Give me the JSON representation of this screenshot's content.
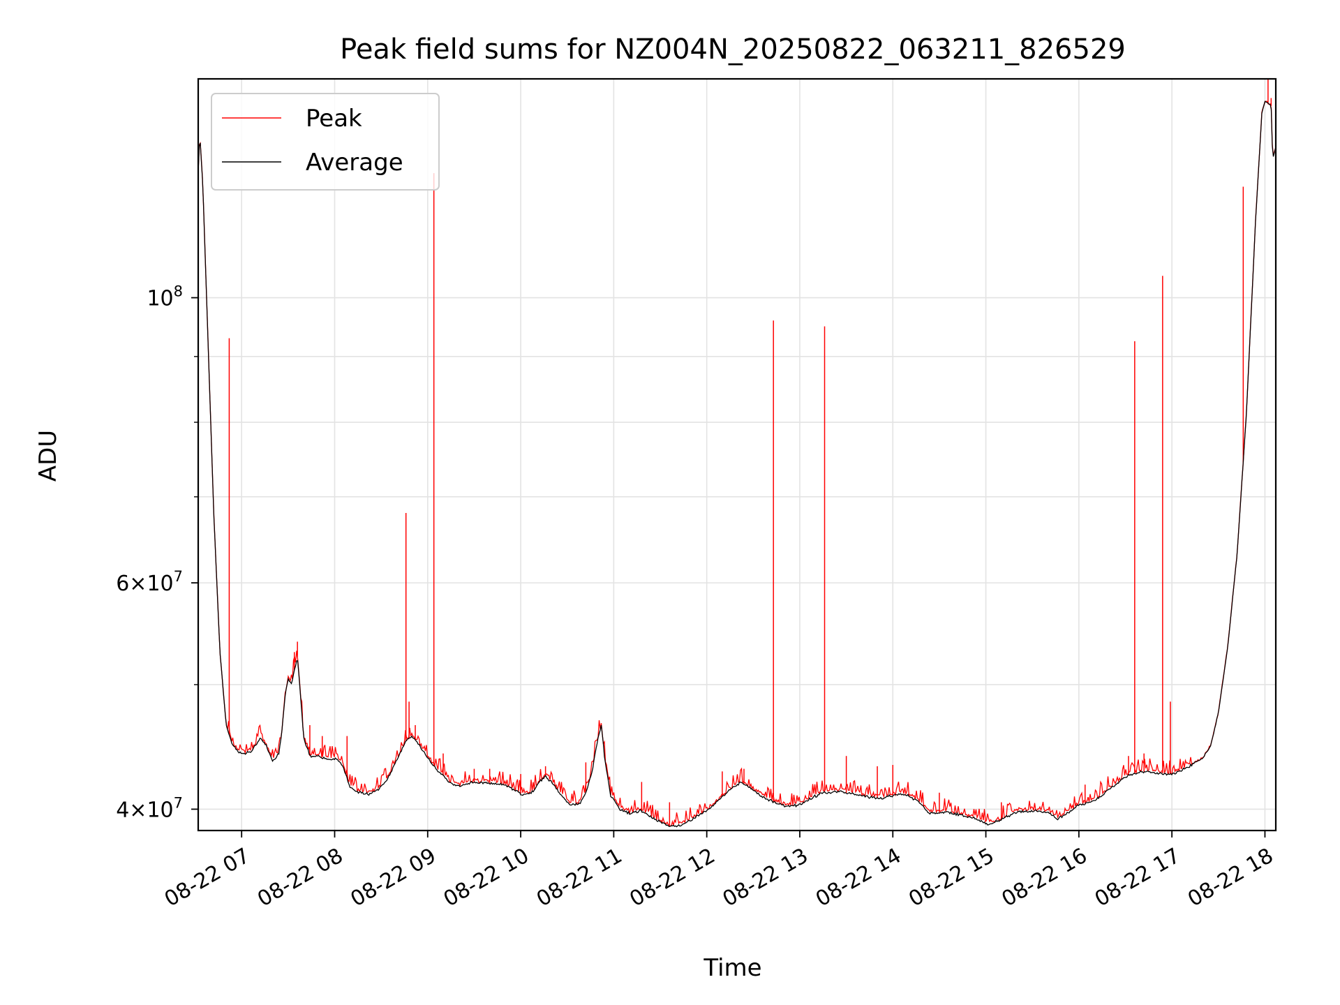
{
  "chart_data": {
    "type": "line",
    "title": "Peak field sums for NZ004N_20250822_063211_826529",
    "xlabel": "Time",
    "ylabel": "ADU",
    "y_scale": "log",
    "ylim": [
      38500000,
      148000000
    ],
    "xlim": [
      "2025-08-22 06:32",
      "2025-08-22 18:07"
    ],
    "x_ticks": [
      {
        "at": "2025-08-22 07:00",
        "label": "08-22 07"
      },
      {
        "at": "2025-08-22 08:00",
        "label": "08-22 08"
      },
      {
        "at": "2025-08-22 09:00",
        "label": "08-22 09"
      },
      {
        "at": "2025-08-22 10:00",
        "label": "08-22 10"
      },
      {
        "at": "2025-08-22 11:00",
        "label": "08-22 11"
      },
      {
        "at": "2025-08-22 12:00",
        "label": "08-22 12"
      },
      {
        "at": "2025-08-22 13:00",
        "label": "08-22 13"
      },
      {
        "at": "2025-08-22 14:00",
        "label": "08-22 14"
      },
      {
        "at": "2025-08-22 15:00",
        "label": "08-22 15"
      },
      {
        "at": "2025-08-22 16:00",
        "label": "08-22 16"
      },
      {
        "at": "2025-08-22 17:00",
        "label": "08-22 17"
      },
      {
        "at": "2025-08-22 18:00",
        "label": "08-22 18"
      }
    ],
    "y_ticks": [
      {
        "value": 40000000,
        "base": "4",
        "exp": "7"
      },
      {
        "value": 60000000,
        "base": "6",
        "exp": "7"
      },
      {
        "value": 100000000,
        "base": "",
        "exp": "8"
      }
    ],
    "y_minor_ticks": [
      50000000,
      70000000,
      80000000,
      90000000
    ],
    "grid": true,
    "legend": {
      "position": "top-left",
      "entries": [
        {
          "label": "Peak",
          "color": "#ff0000"
        },
        {
          "label": "Average",
          "color": "#000000"
        }
      ]
    },
    "series": [
      {
        "name": "Average",
        "color": "#000000",
        "points": [
          [
            "2025-08-22 06:32",
            125000000
          ],
          [
            "2025-08-22 06:33",
            134000000
          ],
          [
            "2025-08-22 06:35",
            122000000
          ],
          [
            "2025-08-22 06:38",
            95000000
          ],
          [
            "2025-08-22 06:42",
            68000000
          ],
          [
            "2025-08-22 06:46",
            53000000
          ],
          [
            "2025-08-22 06:50",
            46500000
          ],
          [
            "2025-08-22 06:54",
            45000000
          ],
          [
            "2025-08-22 06:58",
            44300000
          ],
          [
            "2025-08-22 07:02",
            44200000
          ],
          [
            "2025-08-22 07:06",
            44400000
          ],
          [
            "2025-08-22 07:10",
            45000000
          ],
          [
            "2025-08-22 07:12",
            45500000
          ],
          [
            "2025-08-22 07:16",
            44800000
          ],
          [
            "2025-08-22 07:20",
            43600000
          ],
          [
            "2025-08-22 07:24",
            44200000
          ],
          [
            "2025-08-22 07:26",
            46000000
          ],
          [
            "2025-08-22 07:28",
            49000000
          ],
          [
            "2025-08-22 07:30",
            50500000
          ],
          [
            "2025-08-22 07:32",
            50000000
          ],
          [
            "2025-08-22 07:34",
            51300000
          ],
          [
            "2025-08-22 07:36",
            52500000
          ],
          [
            "2025-08-22 07:38",
            49000000
          ],
          [
            "2025-08-22 07:40",
            45500000
          ],
          [
            "2025-08-22 07:44",
            44000000
          ],
          [
            "2025-08-22 07:50",
            44000000
          ],
          [
            "2025-08-22 07:56",
            43700000
          ],
          [
            "2025-08-22 08:02",
            43800000
          ],
          [
            "2025-08-22 08:06",
            43000000
          ],
          [
            "2025-08-22 08:10",
            41600000
          ],
          [
            "2025-08-22 08:16",
            41200000
          ],
          [
            "2025-08-22 08:22",
            41100000
          ],
          [
            "2025-08-22 08:28",
            41400000
          ],
          [
            "2025-08-22 08:34",
            42200000
          ],
          [
            "2025-08-22 08:40",
            43700000
          ],
          [
            "2025-08-22 08:46",
            45200000
          ],
          [
            "2025-08-22 08:50",
            45600000
          ],
          [
            "2025-08-22 08:56",
            44600000
          ],
          [
            "2025-08-22 09:02",
            43500000
          ],
          [
            "2025-08-22 09:08",
            42700000
          ],
          [
            "2025-08-22 09:14",
            42000000
          ],
          [
            "2025-08-22 09:20",
            41700000
          ],
          [
            "2025-08-22 09:30",
            42000000
          ],
          [
            "2025-08-22 09:40",
            41900000
          ],
          [
            "2025-08-22 09:50",
            41800000
          ],
          [
            "2025-08-22 09:56",
            41400000
          ],
          [
            "2025-08-22 10:02",
            41000000
          ],
          [
            "2025-08-22 10:08",
            41300000
          ],
          [
            "2025-08-22 10:12",
            42000000
          ],
          [
            "2025-08-22 10:16",
            42400000
          ],
          [
            "2025-08-22 10:20",
            42000000
          ],
          [
            "2025-08-22 10:26",
            41000000
          ],
          [
            "2025-08-22 10:32",
            40300000
          ],
          [
            "2025-08-22 10:38",
            40400000
          ],
          [
            "2025-08-22 10:42",
            41200000
          ],
          [
            "2025-08-22 10:46",
            42800000
          ],
          [
            "2025-08-22 10:50",
            45500000
          ],
          [
            "2025-08-22 10:52",
            46500000
          ],
          [
            "2025-08-22 10:54",
            44000000
          ],
          [
            "2025-08-22 10:58",
            41000000
          ],
          [
            "2025-08-22 11:04",
            40000000
          ],
          [
            "2025-08-22 11:10",
            39700000
          ],
          [
            "2025-08-22 11:18",
            39900000
          ],
          [
            "2025-08-22 11:26",
            39300000
          ],
          [
            "2025-08-22 11:36",
            38800000
          ],
          [
            "2025-08-22 11:44",
            38900000
          ],
          [
            "2025-08-22 11:52",
            39400000
          ],
          [
            "2025-08-22 12:00",
            39900000
          ],
          [
            "2025-08-22 12:08",
            40700000
          ],
          [
            "2025-08-22 12:16",
            41500000
          ],
          [
            "2025-08-22 12:22",
            42000000
          ],
          [
            "2025-08-22 12:28",
            41600000
          ],
          [
            "2025-08-22 12:36",
            40900000
          ],
          [
            "2025-08-22 12:44",
            40500000
          ],
          [
            "2025-08-22 12:52",
            40200000
          ],
          [
            "2025-08-22 13:00",
            40300000
          ],
          [
            "2025-08-22 13:06",
            40700000
          ],
          [
            "2025-08-22 13:14",
            41200000
          ],
          [
            "2025-08-22 13:24",
            41300000
          ],
          [
            "2025-08-22 13:34",
            41100000
          ],
          [
            "2025-08-22 13:44",
            40900000
          ],
          [
            "2025-08-22 13:52",
            40800000
          ],
          [
            "2025-08-22 14:00",
            41000000
          ],
          [
            "2025-08-22 14:08",
            41100000
          ],
          [
            "2025-08-22 14:16",
            40600000
          ],
          [
            "2025-08-22 14:24",
            39700000
          ],
          [
            "2025-08-22 14:34",
            39800000
          ],
          [
            "2025-08-22 14:44",
            39600000
          ],
          [
            "2025-08-22 14:54",
            39300000
          ],
          [
            "2025-08-22 15:02",
            38900000
          ],
          [
            "2025-08-22 15:10",
            39300000
          ],
          [
            "2025-08-22 15:20",
            39800000
          ],
          [
            "2025-08-22 15:30",
            39900000
          ],
          [
            "2025-08-22 15:40",
            39800000
          ],
          [
            "2025-08-22 15:46",
            39300000
          ],
          [
            "2025-08-22 15:52",
            39700000
          ],
          [
            "2025-08-22 16:00",
            40300000
          ],
          [
            "2025-08-22 16:10",
            40600000
          ],
          [
            "2025-08-22 16:20",
            41500000
          ],
          [
            "2025-08-22 16:30",
            42400000
          ],
          [
            "2025-08-22 16:40",
            42800000
          ],
          [
            "2025-08-22 16:50",
            42700000
          ],
          [
            "2025-08-22 17:00",
            42600000
          ],
          [
            "2025-08-22 17:10",
            43100000
          ],
          [
            "2025-08-22 17:20",
            43800000
          ],
          [
            "2025-08-22 17:25",
            44800000
          ],
          [
            "2025-08-22 17:30",
            47500000
          ],
          [
            "2025-08-22 17:36",
            53500000
          ],
          [
            "2025-08-22 17:42",
            63000000
          ],
          [
            "2025-08-22 17:48",
            81000000
          ],
          [
            "2025-08-22 17:54",
            115000000
          ],
          [
            "2025-08-22 17:58",
            139000000
          ],
          [
            "2025-08-22 18:00",
            142000000
          ],
          [
            "2025-08-22 18:02",
            141500000
          ],
          [
            "2025-08-22 18:04",
            141000000
          ],
          [
            "2025-08-22 18:05",
            128000000
          ],
          [
            "2025-08-22 18:07",
            131000000
          ]
        ]
      },
      {
        "name": "Peak",
        "color": "#ff0000",
        "spikes": [
          [
            "2025-08-22 06:52",
            93000000
          ],
          [
            "2025-08-22 07:34",
            53000000
          ],
          [
            "2025-08-22 07:36",
            54000000
          ],
          [
            "2025-08-22 07:44",
            46500000
          ],
          [
            "2025-08-22 07:52",
            45600000
          ],
          [
            "2025-08-22 08:08",
            45600000
          ],
          [
            "2025-08-22 08:46",
            68000000
          ],
          [
            "2025-08-22 08:48",
            48500000
          ],
          [
            "2025-08-22 08:52",
            46500000
          ],
          [
            "2025-08-22 09:04",
            125000000
          ],
          [
            "2025-08-22 09:10",
            44200000
          ],
          [
            "2025-08-22 09:30",
            43000000
          ],
          [
            "2025-08-22 09:40",
            43000000
          ],
          [
            "2025-08-22 10:00",
            42600000
          ],
          [
            "2025-08-22 10:16",
            43200000
          ],
          [
            "2025-08-22 10:42",
            43500000
          ],
          [
            "2025-08-22 11:18",
            42000000
          ],
          [
            "2025-08-22 11:36",
            40500000
          ],
          [
            "2025-08-22 12:10",
            42800000
          ],
          [
            "2025-08-22 12:24",
            43000000
          ],
          [
            "2025-08-22 12:43",
            96000000
          ],
          [
            "2025-08-22 13:16",
            95000000
          ],
          [
            "2025-08-22 13:30",
            44000000
          ],
          [
            "2025-08-22 13:50",
            43200000
          ],
          [
            "2025-08-22 14:00",
            43300000
          ],
          [
            "2025-08-22 14:30",
            41200000
          ],
          [
            "2025-08-22 15:10",
            40500000
          ],
          [
            "2025-08-22 16:04",
            41800000
          ],
          [
            "2025-08-22 16:32",
            44000000
          ],
          [
            "2025-08-22 16:36",
            92500000
          ],
          [
            "2025-08-22 16:42",
            44200000
          ],
          [
            "2025-08-22 16:54",
            104000000
          ],
          [
            "2025-08-22 16:59",
            48500000
          ],
          [
            "2025-08-22 17:46",
            122000000
          ],
          [
            "2025-08-22 18:02",
            148000000
          ],
          [
            "2025-08-22 18:04",
            143000000
          ]
        ]
      }
    ]
  }
}
